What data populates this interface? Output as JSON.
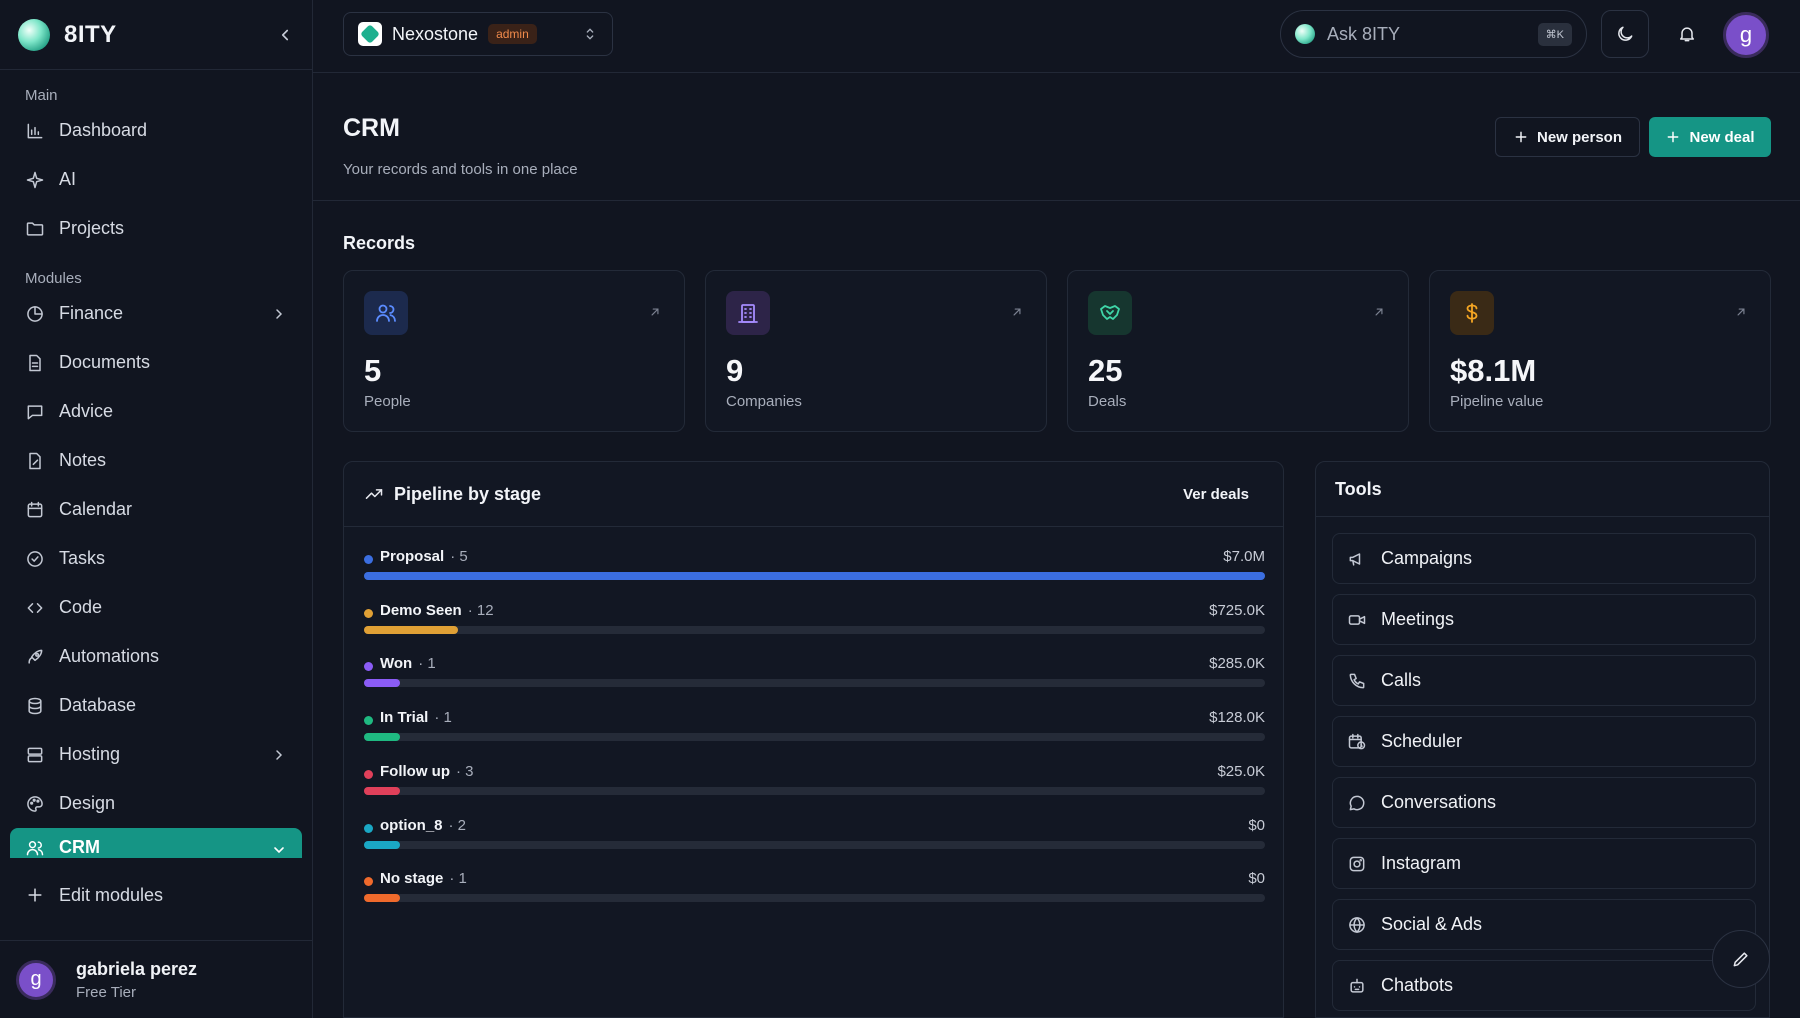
{
  "brand": {
    "name": "8ITY"
  },
  "sidebar": {
    "sections": [
      {
        "label": "Main",
        "items": [
          {
            "label": "Dashboard",
            "icon": "bar-chart-icon"
          },
          {
            "label": "AI",
            "icon": "sparkle-icon"
          },
          {
            "label": "Projects",
            "icon": "folder-icon"
          }
        ]
      },
      {
        "label": "Modules",
        "items": [
          {
            "label": "Finance",
            "icon": "pie-chart-icon",
            "chevron": true
          },
          {
            "label": "Documents",
            "icon": "document-icon"
          },
          {
            "label": "Advice",
            "icon": "chat-icon"
          },
          {
            "label": "Notes",
            "icon": "note-icon"
          },
          {
            "label": "Calendar",
            "icon": "calendar-icon"
          },
          {
            "label": "Tasks",
            "icon": "check-circle-icon"
          },
          {
            "label": "Code",
            "icon": "code-icon"
          },
          {
            "label": "Automations",
            "icon": "rocket-icon"
          },
          {
            "label": "Database",
            "icon": "database-icon"
          },
          {
            "label": "Hosting",
            "icon": "server-icon",
            "chevron": true
          },
          {
            "label": "Design",
            "icon": "palette-icon"
          },
          {
            "label": "CRM",
            "icon": "users-icon",
            "active": true
          }
        ]
      }
    ],
    "edit_modules": "Edit modules",
    "user": {
      "name": "gabriela perez",
      "tier": "Free Tier",
      "initial": "g"
    }
  },
  "topbar": {
    "workspace": {
      "name": "Nexostone",
      "badge": "admin"
    },
    "ask": {
      "label": "Ask 8ITY",
      "shortcut": "⌘K"
    },
    "avatar_initial": "g"
  },
  "header": {
    "title": "CRM",
    "subtitle": "Your records and tools in one place",
    "new_person": "New person",
    "new_deal": "New deal"
  },
  "records": {
    "title": "Records",
    "stats": [
      {
        "value": "5",
        "label": "People",
        "icon": "users-icon",
        "color": "#5b8cff",
        "bg": "#1c2a4d"
      },
      {
        "value": "9",
        "label": "Companies",
        "icon": "building-icon",
        "color": "#a68cff",
        "bg": "#2d2448"
      },
      {
        "value": "25",
        "label": "Deals",
        "icon": "handshake-icon",
        "color": "#3fd6a8",
        "bg": "#16362f"
      },
      {
        "value": "$8.1M",
        "label": "Pipeline value",
        "icon": "dollar-icon",
        "color": "#f5a623",
        "bg": "#3a2a16"
      }
    ]
  },
  "pipeline": {
    "title": "Pipeline by stage",
    "link": "Ver deals",
    "stages": [
      {
        "name": "Proposal",
        "count": "· 5",
        "value": "$7.0M",
        "color": "#3b6ee0",
        "fill": 1.0
      },
      {
        "name": "Demo Seen",
        "count": "· 12",
        "value": "$725.0K",
        "color": "#e0a035",
        "fill": 0.104
      },
      {
        "name": "Won",
        "count": "· 1",
        "value": "$285.0K",
        "color": "#8b5cf6",
        "fill": 0.04
      },
      {
        "name": "In Trial",
        "count": "· 1",
        "value": "$128.0K",
        "color": "#1fb981",
        "fill": 0.04
      },
      {
        "name": "Follow up",
        "count": "· 3",
        "value": "$25.0K",
        "color": "#e0405a",
        "fill": 0.04
      },
      {
        "name": "option_8",
        "count": "· 2",
        "value": "$0",
        "color": "#1aa7c4",
        "fill": 0.04
      },
      {
        "name": "No stage",
        "count": "· 1",
        "value": "$0",
        "color": "#ef6a2c",
        "fill": 0.04
      }
    ]
  },
  "tools": {
    "title": "Tools",
    "items": [
      {
        "label": "Campaigns",
        "icon": "megaphone-icon"
      },
      {
        "label": "Meetings",
        "icon": "video-icon"
      },
      {
        "label": "Calls",
        "icon": "phone-icon"
      },
      {
        "label": "Scheduler",
        "icon": "calendar-clock-icon"
      },
      {
        "label": "Conversations",
        "icon": "chat-icon"
      },
      {
        "label": "Instagram",
        "icon": "instagram-icon"
      },
      {
        "label": "Social & Ads",
        "icon": "globe-icon"
      },
      {
        "label": "Chatbots",
        "icon": "bot-icon"
      }
    ]
  }
}
